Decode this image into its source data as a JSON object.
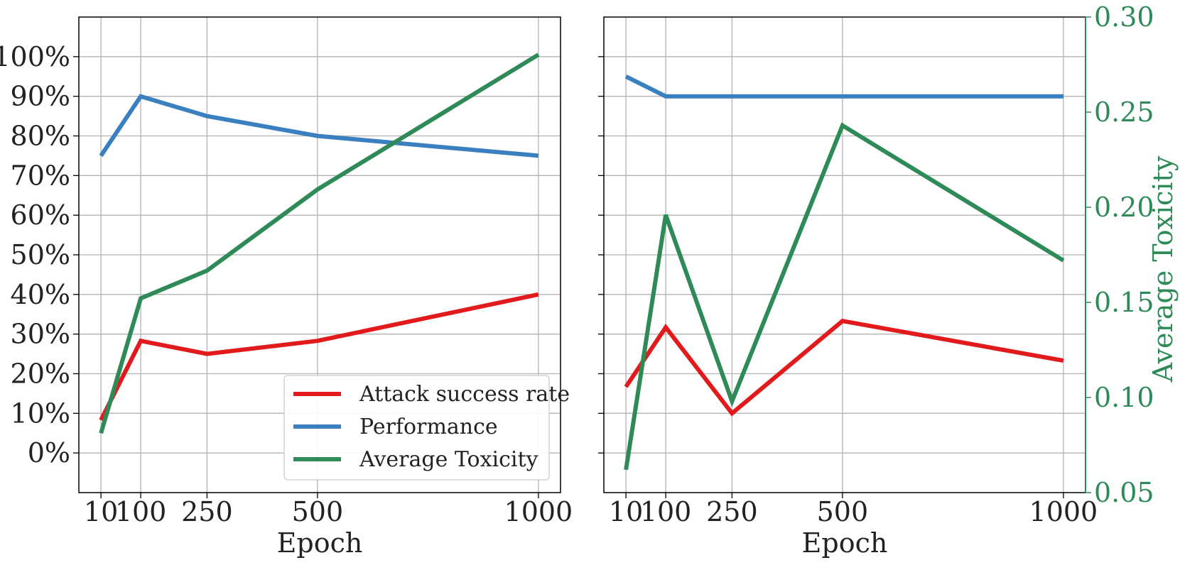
{
  "chart_data": [
    {
      "type": "line",
      "panel": "left",
      "xlabel": "Epoch",
      "x_ticks": [
        10,
        100,
        250,
        500,
        1000
      ],
      "xlim": [
        -40,
        1050
      ],
      "ylim": [
        -10,
        110
      ],
      "y_ticks": [
        0,
        10,
        20,
        30,
        40,
        50,
        60,
        70,
        80,
        90,
        100
      ],
      "y_tick_labels": [
        "0%",
        "10%",
        "20%",
        "30%",
        "40%",
        "50%",
        "60%",
        "70%",
        "80%",
        "90%",
        "100%"
      ],
      "grid": true,
      "legend_position": "lower-right",
      "series": [
        {
          "name": "Attack success rate",
          "color": "#e31a1c",
          "axis": "left",
          "x": [
            10,
            100,
            250,
            500,
            1000
          ],
          "values": [
            8.3,
            28.3,
            25.0,
            28.3,
            40.0
          ]
        },
        {
          "name": "Performance",
          "color": "#3a7fbf",
          "axis": "left",
          "x": [
            10,
            100,
            250,
            500,
            1000
          ],
          "values": [
            75.0,
            90.0,
            85.0,
            80.0,
            75.0
          ]
        },
        {
          "name": "Average Toxicity",
          "color": "#2e8b57",
          "axis": "left",
          "x": [
            10,
            100,
            250,
            500,
            1000
          ],
          "values": [
            5.0,
            39.0,
            46.0,
            66.5,
            100.5
          ]
        }
      ]
    },
    {
      "type": "line",
      "panel": "right",
      "xlabel": "Epoch",
      "x_ticks": [
        10,
        100,
        250,
        500,
        1000
      ],
      "xlim": [
        -40,
        1050
      ],
      "ylim": [
        -10,
        110
      ],
      "y_ticks": [
        0,
        10,
        20,
        30,
        40,
        50,
        60,
        70,
        80,
        90,
        100
      ],
      "right_ylabel": "Average Toxicity",
      "right_ylim": [
        0.05,
        0.3
      ],
      "right_y_ticks": [
        0.05,
        0.1,
        0.15,
        0.2,
        0.25,
        0.3
      ],
      "right_y_tick_labels": [
        "0.05",
        "0.10",
        "0.15",
        "0.20",
        "0.25",
        "0.30"
      ],
      "right_axis_color": "#2e8b57",
      "grid": true,
      "series": [
        {
          "name": "Attack success rate",
          "color": "#e31a1c",
          "axis": "left",
          "x": [
            10,
            100,
            250,
            500,
            1000
          ],
          "values": [
            16.7,
            31.7,
            10.0,
            33.3,
            23.3
          ]
        },
        {
          "name": "Performance",
          "color": "#3a7fbf",
          "axis": "left",
          "x": [
            10,
            100,
            250,
            500,
            1000
          ],
          "values": [
            95.0,
            90.0,
            90.0,
            90.0,
            90.0
          ]
        },
        {
          "name": "Average Toxicity",
          "color": "#2e8b57",
          "axis": "right",
          "x": [
            10,
            100,
            250,
            500,
            1000
          ],
          "values": [
            0.062,
            0.196,
            0.098,
            0.243,
            0.172
          ]
        }
      ]
    }
  ]
}
